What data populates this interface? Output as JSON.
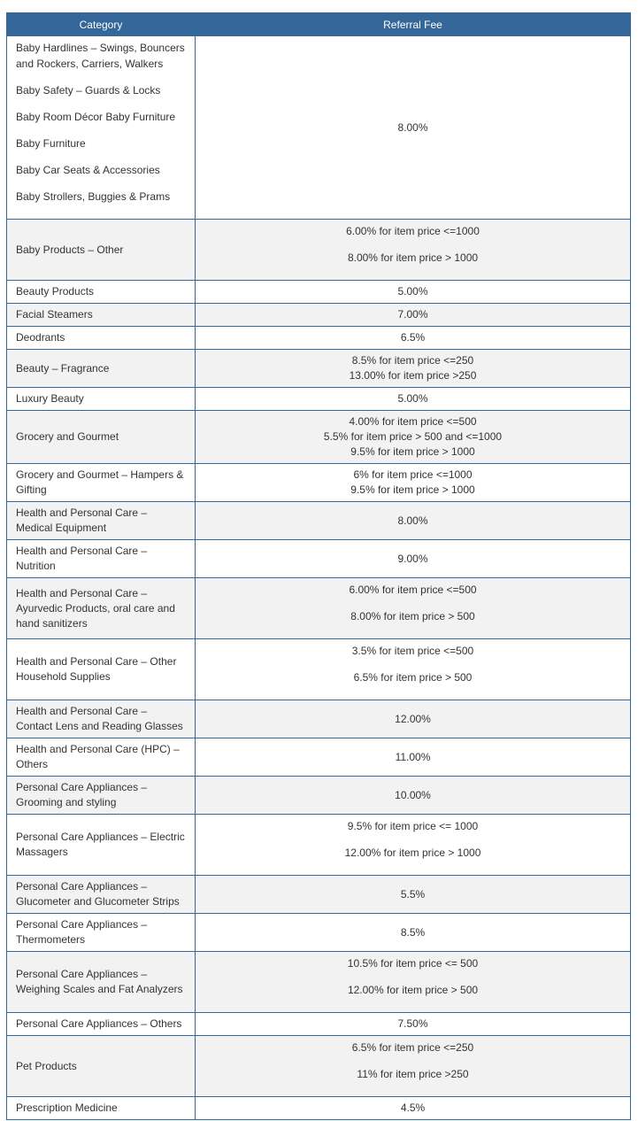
{
  "table": {
    "header": [
      "Category",
      "Referral Fee"
    ],
    "rows": [
      {
        "category": {
          "paragraphs": [
            "Baby Hardlines – Swings, Bouncers and Rockers, Carriers, Walkers",
            "Baby Safety – Guards & Locks",
            "Baby Room Décor Baby Furniture",
            "Baby Furniture",
            "Baby Car Seats & Accessories",
            "Baby Strollers, Buggies & Prams"
          ]
        },
        "fee": "8.00%"
      },
      {
        "category": "Baby Products – Other",
        "fee": {
          "paragraphs": [
            "6.00% for item price <=1000",
            "8.00% for item price > 1000"
          ]
        }
      },
      {
        "category": "Beauty Products",
        "fee": "5.00%"
      },
      {
        "category": "Facial Steamers",
        "fee": "7.00%"
      },
      {
        "category": "Deodrants",
        "fee": "6.5%"
      },
      {
        "category": "Beauty – Fragrance",
        "fee": {
          "lines": [
            "8.5% for item price <=250",
            "13.00% for item price >250"
          ]
        }
      },
      {
        "category": "Luxury Beauty",
        "fee": "5.00%"
      },
      {
        "category": "Grocery and Gourmet",
        "fee": {
          "lines": [
            "4.00% for item price <=500",
            "5.5% for item price > 500 and <=1000",
            "9.5% for item price > 1000"
          ]
        }
      },
      {
        "category": "Grocery and Gourmet – Hampers & Gifting",
        "fee": {
          "lines": [
            "6% for item price <=1000",
            "9.5% for item price > 1000"
          ]
        }
      },
      {
        "category": "Health and Personal Care – Medical Equipment",
        "fee": "8.00%"
      },
      {
        "category": "Health and Personal Care – Nutrition",
        "fee": "9.00%"
      },
      {
        "category": "Health and Personal Care – Ayurvedic Products, oral care and hand sanitizers",
        "fee": {
          "paragraphs": [
            "6.00% for item price <=500",
            "8.00% for item price > 500"
          ]
        }
      },
      {
        "category": "Health and Personal Care – Other Household Supplies",
        "fee": {
          "paragraphs": [
            "3.5% for item price <=500",
            "6.5% for item price > 500"
          ]
        }
      },
      {
        "category": "Health and Personal Care – Contact Lens and Reading Glasses",
        "fee": "12.00%"
      },
      {
        "category": "Health and Personal Care (HPC) – Others",
        "fee": "11.00%"
      },
      {
        "category": "Personal Care Appliances – Grooming and styling",
        "fee": "10.00%"
      },
      {
        "category": "Personal Care Appliances – Electric Massagers",
        "fee": {
          "paragraphs": [
            "9.5% for item price <= 1000",
            "12.00% for item price > 1000"
          ]
        }
      },
      {
        "category": "Personal Care Appliances – Glucometer and Glucometer Strips",
        "fee": "5.5%"
      },
      {
        "category": "Personal Care Appliances – Thermometers",
        "fee": "8.5%"
      },
      {
        "category": "Personal Care Appliances – Weighing Scales and Fat Analyzers",
        "fee": {
          "paragraphs": [
            "10.5% for item price <= 500",
            "12.00% for item price > 500"
          ]
        }
      },
      {
        "category": "Personal Care Appliances – Others",
        "fee": "7.50%"
      },
      {
        "category": "Pet Products",
        "fee": {
          "paragraphs": [
            "6.5% for item price <=250",
            "11% for item price >250"
          ]
        }
      },
      {
        "category": "Prescription Medicine",
        "fee": "4.5%"
      }
    ]
  }
}
